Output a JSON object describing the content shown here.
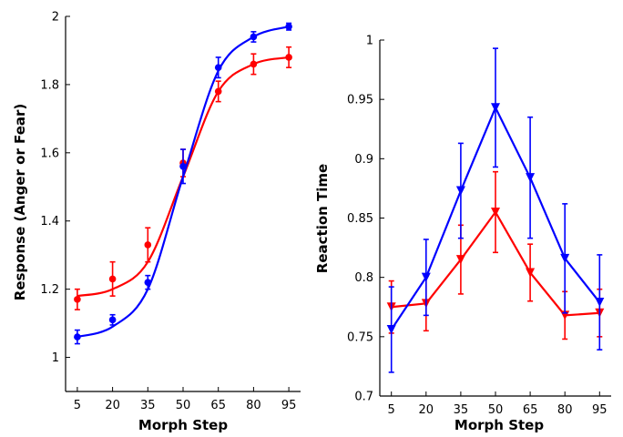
{
  "chart_data": [
    {
      "type": "line",
      "xlabel": "Morph Step",
      "ylabel": "Response (Anger or Fear)",
      "x": [
        5,
        20,
        35,
        50,
        65,
        80,
        95
      ],
      "xlim": [
        0,
        100
      ],
      "ylim": [
        0.9,
        2.0
      ],
      "xticks": [
        "5",
        "20",
        "35",
        "50",
        "65",
        "80",
        "95"
      ],
      "yticks": [
        "1",
        "1.2",
        "1.4",
        "1.6",
        "1.8",
        "2"
      ],
      "grid": false,
      "series": [
        {
          "color": "#ff0000",
          "points": [
            1.17,
            1.23,
            1.33,
            1.57,
            1.78,
            1.86,
            1.88
          ],
          "err": [
            0.03,
            0.05,
            0.05,
            0.04,
            0.03,
            0.03,
            0.03
          ],
          "fit": [
            1.18,
            1.2,
            1.28,
            1.53,
            1.78,
            1.86,
            1.88
          ]
        },
        {
          "color": "#0000ff",
          "points": [
            1.06,
            1.11,
            1.22,
            1.56,
            1.85,
            1.94,
            1.97
          ],
          "err": [
            0.02,
            0.015,
            0.02,
            0.05,
            0.03,
            0.015,
            0.01
          ],
          "fit": [
            1.06,
            1.09,
            1.2,
            1.53,
            1.84,
            1.94,
            1.97
          ]
        }
      ]
    },
    {
      "type": "line",
      "xlabel": "Morph Step",
      "ylabel": "Reaction Time",
      "x": [
        5,
        20,
        35,
        50,
        65,
        80,
        95
      ],
      "xlim": [
        0,
        100
      ],
      "ylim": [
        0.7,
        1.0
      ],
      "xticks": [
        "5",
        "20",
        "35",
        "50",
        "65",
        "80",
        "95"
      ],
      "yticks": [
        "0.7",
        "0.75",
        "0.8",
        "0.85",
        "0.9",
        "0.95",
        "1"
      ],
      "grid": false,
      "series": [
        {
          "color": "#ff0000",
          "points": [
            0.775,
            0.778,
            0.815,
            0.855,
            0.804,
            0.768,
            0.77
          ],
          "err": [
            0.022,
            0.023,
            0.029,
            0.034,
            0.024,
            0.02,
            0.02
          ]
        },
        {
          "color": "#0000ff",
          "points": [
            0.756,
            0.8,
            0.873,
            0.943,
            0.884,
            0.816,
            0.779
          ],
          "err": [
            0.036,
            0.032,
            0.04,
            0.05,
            0.051,
            0.046,
            0.04
          ]
        }
      ]
    }
  ]
}
